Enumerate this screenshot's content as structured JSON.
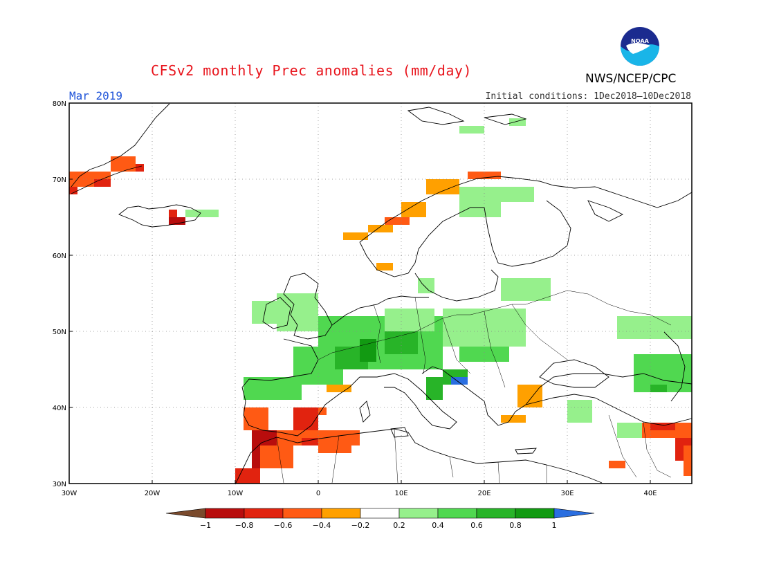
{
  "header": {
    "title": "CFSv2 monthly Prec anomalies (mm/day)",
    "organization": "NWS/NCEP/CPC",
    "logo_text": "NOAA",
    "month": "Mar 2019",
    "initial_conditions": "Initial conditions: 1Dec2018–10Dec2018"
  },
  "axes": {
    "lat_labels": [
      "80N",
      "70N",
      "60N",
      "50N",
      "40N",
      "30N"
    ],
    "lon_labels": [
      "30W",
      "20W",
      "10W",
      "0",
      "10E",
      "20E",
      "30E",
      "40E"
    ],
    "lat_range": [
      30,
      80
    ],
    "lon_range": [
      -30,
      45
    ],
    "grid": "dotted"
  },
  "colorbar": {
    "levels": [
      "-1",
      "-0.8",
      "-0.6",
      "-0.4",
      "-0.2",
      "0.2",
      "0.4",
      "0.6",
      "0.8",
      "1"
    ],
    "colors": [
      "#7a4a2c",
      "#b80d0d",
      "#e1230f",
      "#ff5a14",
      "#ffa000",
      "#ffffff",
      "#96f08c",
      "#50d850",
      "#28b428",
      "#129a12",
      "#2a6ee0"
    ]
  },
  "chart_data": {
    "type": "heatmap",
    "title": "CFSv2 monthly Prec anomalies (mm/day)",
    "variable": "Precipitation anomaly",
    "unit": "mm/day",
    "period": "Mar 2019",
    "regions": [
      {
        "lon0": -30,
        "lat0": 69,
        "lon1": -25,
        "lat1": 71,
        "v": -0.4
      },
      {
        "lon0": -25,
        "lat0": 71,
        "lon1": -22,
        "lat1": 73,
        "v": -0.4
      },
      {
        "lon0": -22,
        "lat0": 71,
        "lon1": -21,
        "lat1": 72,
        "v": -0.6
      },
      {
        "lon0": -27,
        "lat0": 69,
        "lon1": -25,
        "lat1": 70,
        "v": -0.6
      },
      {
        "lon0": -30,
        "lat0": 68,
        "lon1": -29,
        "lat1": 69,
        "v": -0.6
      },
      {
        "lon0": -18,
        "lat0": 64,
        "lon1": -16,
        "lat1": 65,
        "v": -0.8
      },
      {
        "lon0": -18,
        "lat0": 65,
        "lon1": -17,
        "lat1": 66,
        "v": -0.6
      },
      {
        "lon0": -16,
        "lat0": 65,
        "lon1": -12,
        "lat1": 66,
        "v": 0.2
      },
      {
        "lon0": 3,
        "lat0": 62,
        "lon1": 6,
        "lat1": 63,
        "v": -0.2
      },
      {
        "lon0": 6,
        "lat0": 63,
        "lon1": 9,
        "lat1": 64,
        "v": -0.2
      },
      {
        "lon0": 8,
        "lat0": 64,
        "lon1": 11,
        "lat1": 65,
        "v": -0.4
      },
      {
        "lon0": 10,
        "lat0": 65,
        "lon1": 13,
        "lat1": 67,
        "v": -0.2
      },
      {
        "lon0": 13,
        "lat0": 68,
        "lon1": 17,
        "lat1": 70,
        "v": -0.2
      },
      {
        "lon0": 18,
        "lat0": 70,
        "lon1": 22,
        "lat1": 71,
        "v": -0.4
      },
      {
        "lon0": 7,
        "lat0": 58,
        "lon1": 9,
        "lat1": 59,
        "v": -0.2
      },
      {
        "lon0": 17,
        "lat0": 65,
        "lon1": 22,
        "lat1": 69,
        "v": 0.2
      },
      {
        "lon0": 22,
        "lat0": 67,
        "lon1": 26,
        "lat1": 69,
        "v": 0.2
      },
      {
        "lon0": 17,
        "lat0": 76,
        "lon1": 20,
        "lat1": 77,
        "v": 0.2
      },
      {
        "lon0": 23,
        "lat0": 77,
        "lon1": 25,
        "lat1": 78,
        "v": 0.2
      },
      {
        "lon0": -5,
        "lat0": 50,
        "lon1": 0,
        "lat1": 55,
        "v": 0.2
      },
      {
        "lon0": -8,
        "lat0": 51,
        "lon1": -5,
        "lat1": 54,
        "v": 0.2
      },
      {
        "lon0": 0,
        "lat0": 48,
        "lon1": 8,
        "lat1": 52,
        "v": 0.4
      },
      {
        "lon0": -3,
        "lat0": 43,
        "lon1": 3,
        "lat1": 48,
        "v": 0.4
      },
      {
        "lon0": 5,
        "lat0": 45,
        "lon1": 15,
        "lat1": 52,
        "v": 0.4
      },
      {
        "lon0": 15,
        "lat0": 48,
        "lon1": 25,
        "lat1": 53,
        "v": 0.2
      },
      {
        "lon0": 8,
        "lat0": 50,
        "lon1": 14,
        "lat1": 53,
        "v": 0.2
      },
      {
        "lon0": 12,
        "lat0": 55,
        "lon1": 14,
        "lat1": 57,
        "v": 0.2
      },
      {
        "lon0": 22,
        "lat0": 54,
        "lon1": 28,
        "lat1": 57,
        "v": 0.2
      },
      {
        "lon0": 17,
        "lat0": 46,
        "lon1": 23,
        "lat1": 48,
        "v": 0.4
      },
      {
        "lon0": 2,
        "lat0": 45,
        "lon1": 6,
        "lat1": 48,
        "v": 0.6
      },
      {
        "lon0": 5,
        "lat0": 46,
        "lon1": 7,
        "lat1": 49,
        "v": 0.8
      },
      {
        "lon0": 8,
        "lat0": 47,
        "lon1": 12,
        "lat1": 50,
        "v": 0.6
      },
      {
        "lon0": 13,
        "lat0": 41,
        "lon1": 15,
        "lat1": 44,
        "v": 0.6
      },
      {
        "lon0": 15,
        "lat0": 43,
        "lon1": 18,
        "lat1": 45,
        "v": 0.6
      },
      {
        "lon0": 16,
        "lat0": 43,
        "lon1": 18,
        "lat1": 44,
        "v": 1.0
      },
      {
        "lon0": -9,
        "lat0": 41,
        "lon1": -2,
        "lat1": 44,
        "v": 0.4
      },
      {
        "lon0": 1,
        "lat0": 42,
        "lon1": 4,
        "lat1": 43,
        "v": -0.2
      },
      {
        "lon0": -9,
        "lat0": 37,
        "lon1": -6,
        "lat1": 40,
        "v": -0.4
      },
      {
        "lon0": -3,
        "lat0": 37,
        "lon1": 0,
        "lat1": 40,
        "v": -0.6
      },
      {
        "lon0": 0,
        "lat0": 39,
        "lon1": 1,
        "lat1": 40,
        "v": -0.4
      },
      {
        "lon0": -5,
        "lat0": 35,
        "lon1": 5,
        "lat1": 37,
        "v": -0.4
      },
      {
        "lon0": -2,
        "lat0": 35,
        "lon1": 0,
        "lat1": 36,
        "v": -0.6
      },
      {
        "lon0": 0,
        "lat0": 34,
        "lon1": 4,
        "lat1": 36,
        "v": -0.4
      },
      {
        "lon0": -8,
        "lat0": 32,
        "lon1": -5,
        "lat1": 37,
        "v": -0.8
      },
      {
        "lon0": -10,
        "lat0": 30,
        "lon1": -7,
        "lat1": 32,
        "v": -0.6
      },
      {
        "lon0": -7,
        "lat0": 32,
        "lon1": -3,
        "lat1": 35,
        "v": -0.4
      },
      {
        "lon0": 24,
        "lat0": 40,
        "lon1": 27,
        "lat1": 43,
        "v": -0.2
      },
      {
        "lon0": 22,
        "lat0": 38,
        "lon1": 25,
        "lat1": 39,
        "v": -0.2
      },
      {
        "lon0": 30,
        "lat0": 38,
        "lon1": 33,
        "lat1": 41,
        "v": 0.2
      },
      {
        "lon0": 36,
        "lat0": 36,
        "lon1": 39,
        "lat1": 38,
        "v": 0.2
      },
      {
        "lon0": 38,
        "lat0": 42,
        "lon1": 45,
        "lat1": 47,
        "v": 0.4
      },
      {
        "lon0": 40,
        "lat0": 42,
        "lon1": 42,
        "lat1": 43,
        "v": 0.6
      },
      {
        "lon0": 36,
        "lat0": 49,
        "lon1": 45,
        "lat1": 52,
        "v": 0.2
      },
      {
        "lon0": 39,
        "lat0": 36,
        "lon1": 45,
        "lat1": 38,
        "v": -0.4
      },
      {
        "lon0": 40,
        "lat0": 37,
        "lon1": 43,
        "lat1": 38,
        "v": -0.6
      },
      {
        "lon0": 43,
        "lat0": 33,
        "lon1": 45,
        "lat1": 36,
        "v": -0.6
      },
      {
        "lon0": 44,
        "lat0": 31,
        "lon1": 45,
        "lat1": 35,
        "v": -0.4
      },
      {
        "lon0": 35,
        "lat0": 32,
        "lon1": 37,
        "lat1": 33,
        "v": -0.4
      }
    ]
  }
}
